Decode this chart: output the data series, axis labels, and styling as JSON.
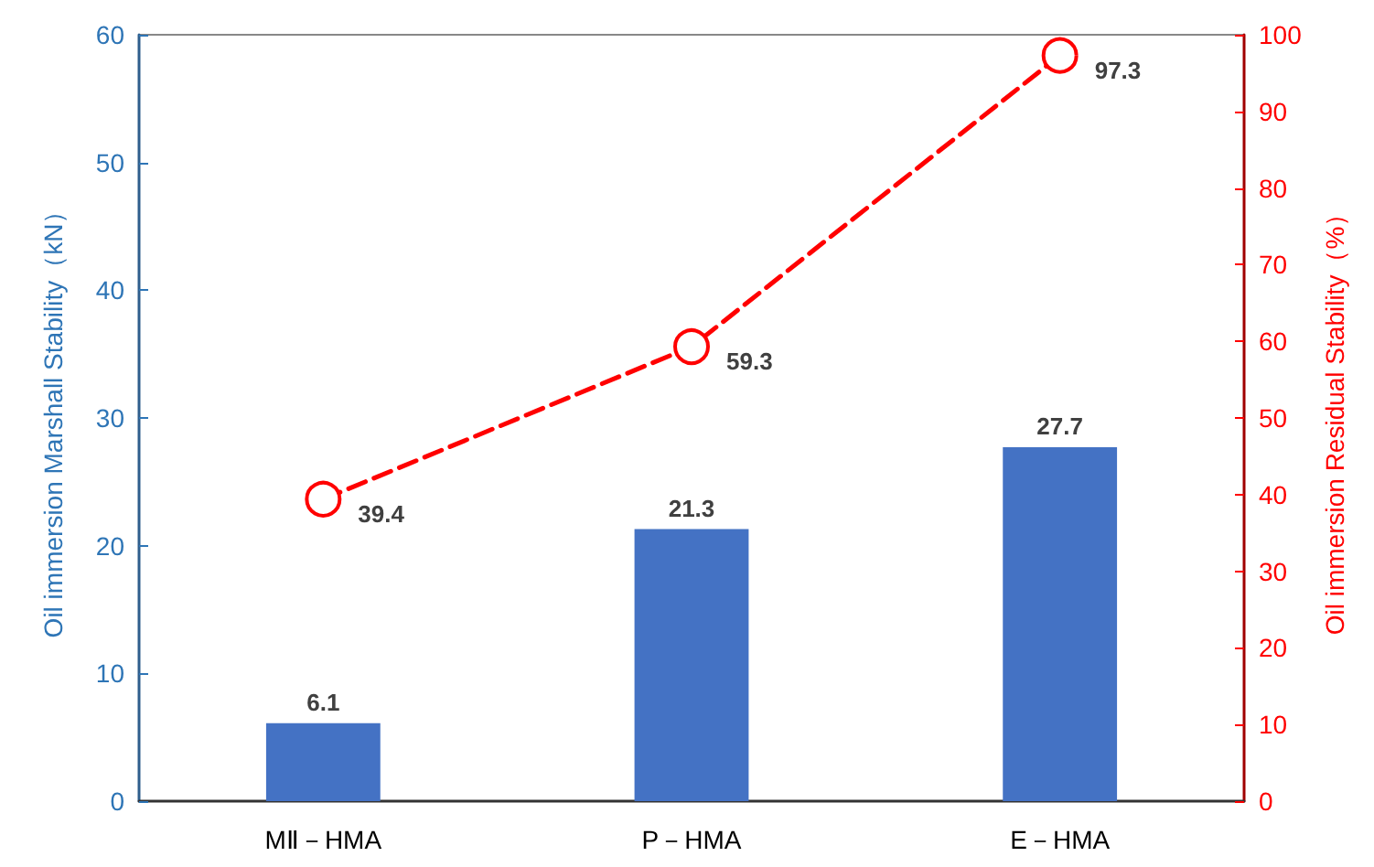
{
  "chart_data": {
    "type": "bar",
    "categories": [
      "MⅡ－HMA",
      "P－HMA",
      "E－HMA"
    ],
    "ylabel": "Oil immersion Marshall Stability（kN）",
    "y2label": "Oil immersion Residual Stability（%）",
    "ylim": [
      0,
      60
    ],
    "yticks": [
      0,
      10,
      20,
      30,
      40,
      50,
      60
    ],
    "y2lim": [
      0,
      100
    ],
    "y2ticks": [
      0,
      10,
      20,
      30,
      40,
      50,
      60,
      70,
      80,
      90,
      100
    ],
    "series": [
      {
        "color": "#4472c4",
        "values": [
          6.1,
          21.3,
          27.7
        ]
      },
      {
        "type": "line",
        "axis": "y2",
        "color": "#ff0000",
        "line_style": "dashed",
        "values": [
          39.4,
          59.3,
          97.3
        ]
      }
    ],
    "data_labels": true,
    "marker": "circle"
  }
}
